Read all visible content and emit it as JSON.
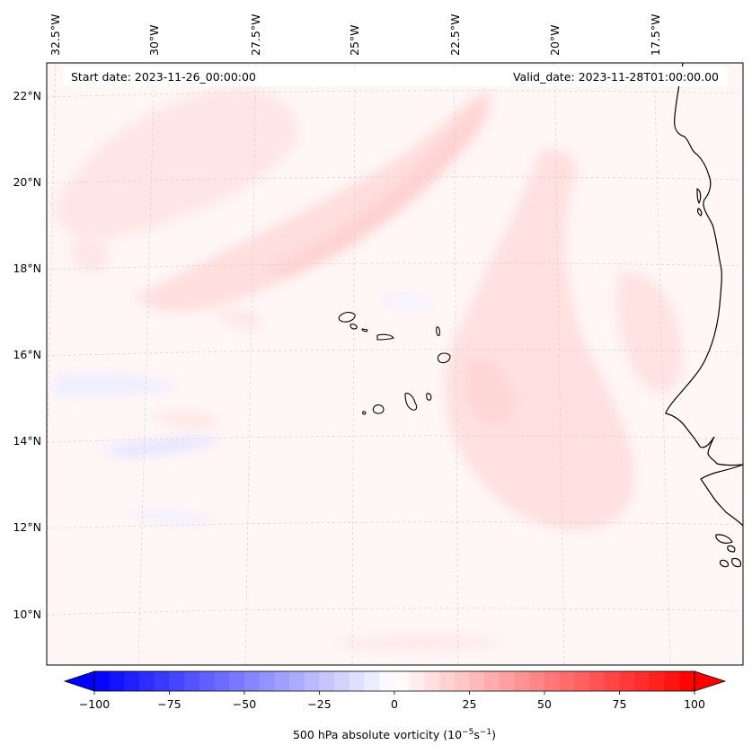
{
  "map": {
    "start_label": "Start date: 2023-11-26_00:00:00",
    "valid_label": "Valid_date: 2023-11-28T01:00:00.00",
    "lon_labels": [
      "32.5°W",
      "30°W",
      "27.5°W",
      "25°W",
      "22.5°W",
      "20°W",
      "17.5°W"
    ],
    "lat_labels": [
      "22°N",
      "20°N",
      "18°N",
      "16°N",
      "14°N",
      "12°N",
      "10°N"
    ],
    "colorbar": {
      "ticks": [
        "−100",
        "−75",
        "−50",
        "−25",
        "0",
        "25",
        "50",
        "75",
        "100"
      ],
      "label_prefix": "500 hPa absolute vorticity (10",
      "label_exp1": "−5",
      "label_mid": "s",
      "label_exp2": "−1",
      "label_suffix": ")",
      "min": -100,
      "max": 100,
      "step": 5
    },
    "colors": {
      "negative": "#0000ff",
      "positive": "#ff0000",
      "coast": "#000000"
    }
  }
}
